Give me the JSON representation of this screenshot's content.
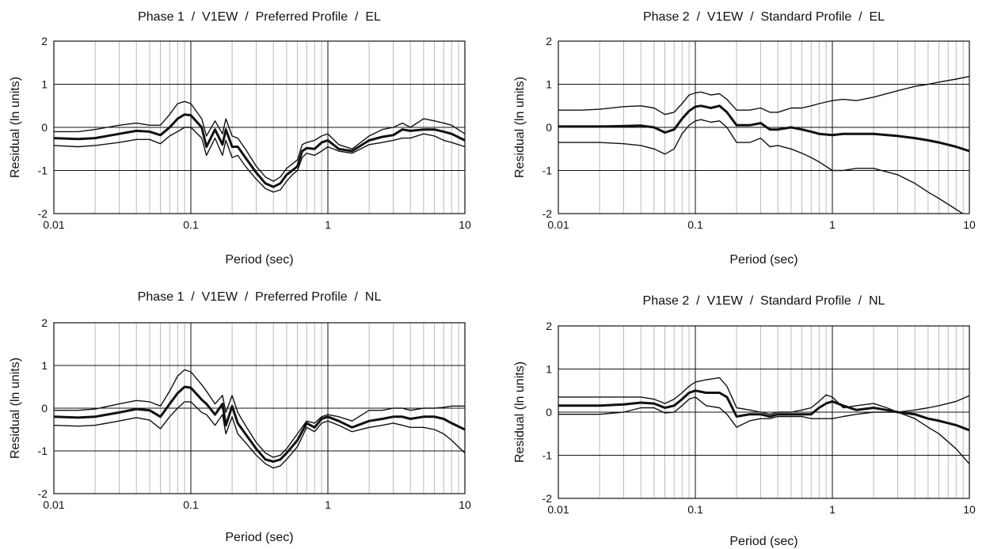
{
  "chart_data": [
    {
      "type": "line",
      "title": "Phase 1  /  V1EW  /  Preferred Profile  /  EL",
      "xlabel": "Period (sec)",
      "ylabel": "Residual (ln units)",
      "xscale": "log",
      "xlim": [
        0.01,
        10
      ],
      "ylim": [
        -2,
        2
      ],
      "xticks": [
        "0.01",
        "0.1",
        "1",
        "10"
      ],
      "yticks": [
        "-2",
        "-1",
        "0",
        "1",
        "2"
      ],
      "grid": true,
      "series": [
        {
          "role": "mean",
          "x": [
            0.01,
            0.015,
            0.02,
            0.03,
            0.04,
            0.05,
            0.06,
            0.07,
            0.08,
            0.09,
            0.1,
            0.12,
            0.13,
            0.15,
            0.17,
            0.18,
            0.2,
            0.22,
            0.25,
            0.3,
            0.35,
            0.4,
            0.45,
            0.5,
            0.55,
            0.6,
            0.65,
            0.7,
            0.8,
            0.9,
            1.0,
            1.2,
            1.5,
            2,
            2.5,
            3,
            3.5,
            4,
            5,
            6,
            7,
            8,
            10
          ],
          "y": [
            -0.25,
            -0.27,
            -0.25,
            -0.15,
            -0.08,
            -0.1,
            -0.18,
            0.0,
            0.2,
            0.3,
            0.28,
            0.0,
            -0.45,
            -0.05,
            -0.4,
            -0.05,
            -0.45,
            -0.45,
            -0.7,
            -1.05,
            -1.3,
            -1.38,
            -1.3,
            -1.1,
            -1.0,
            -0.9,
            -0.55,
            -0.48,
            -0.5,
            -0.35,
            -0.3,
            -0.5,
            -0.55,
            -0.3,
            -0.22,
            -0.18,
            -0.05,
            -0.08,
            -0.05,
            -0.05,
            -0.1,
            -0.15,
            -0.3
          ]
        },
        {
          "role": "upper",
          "x": [
            0.01,
            0.015,
            0.02,
            0.03,
            0.04,
            0.05,
            0.06,
            0.07,
            0.08,
            0.09,
            0.1,
            0.12,
            0.13,
            0.15,
            0.17,
            0.18,
            0.2,
            0.22,
            0.25,
            0.3,
            0.35,
            0.4,
            0.45,
            0.5,
            0.55,
            0.6,
            0.65,
            0.7,
            0.8,
            0.9,
            1.0,
            1.2,
            1.5,
            2,
            2.5,
            3,
            3.5,
            4,
            5,
            6,
            7,
            8,
            10
          ],
          "y": [
            -0.1,
            -0.1,
            -0.05,
            0.05,
            0.1,
            0.05,
            0.05,
            0.3,
            0.55,
            0.6,
            0.55,
            0.2,
            -0.2,
            0.15,
            -0.15,
            0.2,
            -0.2,
            -0.25,
            -0.5,
            -0.9,
            -1.15,
            -1.25,
            -1.15,
            -0.95,
            -0.85,
            -0.75,
            -0.4,
            -0.35,
            -0.3,
            -0.2,
            -0.15,
            -0.4,
            -0.5,
            -0.2,
            -0.05,
            0.0,
            0.1,
            0.0,
            0.2,
            0.15,
            0.1,
            0.05,
            -0.15
          ]
        },
        {
          "role": "lower",
          "x": [
            0.01,
            0.015,
            0.02,
            0.03,
            0.04,
            0.05,
            0.06,
            0.07,
            0.08,
            0.09,
            0.1,
            0.12,
            0.13,
            0.15,
            0.17,
            0.18,
            0.2,
            0.22,
            0.25,
            0.3,
            0.35,
            0.4,
            0.45,
            0.5,
            0.55,
            0.6,
            0.65,
            0.7,
            0.8,
            0.9,
            1.0,
            1.2,
            1.5,
            2,
            2.5,
            3,
            3.5,
            4,
            5,
            6,
            7,
            8,
            10
          ],
          "y": [
            -0.42,
            -0.45,
            -0.42,
            -0.35,
            -0.28,
            -0.28,
            -0.38,
            -0.2,
            -0.1,
            0.0,
            0.0,
            -0.25,
            -0.65,
            -0.25,
            -0.65,
            -0.3,
            -0.7,
            -0.65,
            -0.9,
            -1.2,
            -1.42,
            -1.5,
            -1.45,
            -1.25,
            -1.1,
            -1.0,
            -0.7,
            -0.6,
            -0.65,
            -0.55,
            -0.45,
            -0.55,
            -0.6,
            -0.4,
            -0.35,
            -0.3,
            -0.25,
            -0.25,
            -0.15,
            -0.2,
            -0.3,
            -0.35,
            -0.45
          ]
        }
      ]
    },
    {
      "type": "line",
      "title": "Phase 2  /  V1EW  /  Standard Profile  /  EL",
      "xlabel": "Period (sec)",
      "ylabel": "Residual (ln units)",
      "xscale": "log",
      "xlim": [
        0.01,
        10
      ],
      "ylim": [
        -2,
        2
      ],
      "xticks": [
        "0.01",
        "0.1",
        "1",
        "10"
      ],
      "yticks": [
        "-2",
        "-1",
        "0",
        "1",
        "2"
      ],
      "grid": true,
      "series": [
        {
          "role": "mean",
          "x": [
            0.01,
            0.015,
            0.02,
            0.03,
            0.04,
            0.05,
            0.06,
            0.07,
            0.08,
            0.09,
            0.1,
            0.11,
            0.13,
            0.15,
            0.17,
            0.2,
            0.25,
            0.3,
            0.35,
            0.4,
            0.5,
            0.6,
            0.7,
            0.8,
            1.0,
            1.2,
            1.5,
            2,
            3,
            4,
            5,
            6,
            8,
            10
          ],
          "y": [
            0.02,
            0.02,
            0.02,
            0.03,
            0.04,
            0.0,
            -0.12,
            -0.05,
            0.2,
            0.38,
            0.48,
            0.5,
            0.45,
            0.5,
            0.35,
            0.05,
            0.05,
            0.1,
            -0.05,
            -0.05,
            0.0,
            -0.05,
            -0.1,
            -0.15,
            -0.18,
            -0.15,
            -0.15,
            -0.15,
            -0.2,
            -0.25,
            -0.3,
            -0.35,
            -0.45,
            -0.55
          ]
        },
        {
          "role": "upper",
          "x": [
            0.01,
            0.015,
            0.02,
            0.03,
            0.04,
            0.05,
            0.06,
            0.07,
            0.08,
            0.09,
            0.1,
            0.11,
            0.13,
            0.15,
            0.17,
            0.2,
            0.25,
            0.3,
            0.35,
            0.4,
            0.5,
            0.6,
            0.7,
            0.8,
            1.0,
            1.2,
            1.5,
            2,
            3,
            4,
            5,
            6,
            8,
            10
          ],
          "y": [
            0.4,
            0.4,
            0.42,
            0.48,
            0.5,
            0.45,
            0.3,
            0.35,
            0.55,
            0.75,
            0.8,
            0.82,
            0.75,
            0.78,
            0.65,
            0.4,
            0.4,
            0.45,
            0.35,
            0.35,
            0.45,
            0.45,
            0.5,
            0.55,
            0.62,
            0.65,
            0.62,
            0.7,
            0.85,
            0.95,
            1.0,
            1.05,
            1.12,
            1.18
          ]
        },
        {
          "role": "lower",
          "x": [
            0.01,
            0.015,
            0.02,
            0.03,
            0.04,
            0.05,
            0.06,
            0.07,
            0.08,
            0.09,
            0.1,
            0.11,
            0.13,
            0.15,
            0.17,
            0.2,
            0.25,
            0.3,
            0.35,
            0.4,
            0.5,
            0.6,
            0.7,
            0.8,
            1.0,
            1.2,
            1.5,
            2,
            3,
            4,
            5,
            6,
            8,
            10
          ],
          "y": [
            -0.35,
            -0.35,
            -0.35,
            -0.38,
            -0.42,
            -0.5,
            -0.62,
            -0.5,
            -0.15,
            0.05,
            0.15,
            0.18,
            0.12,
            0.15,
            0.0,
            -0.35,
            -0.35,
            -0.25,
            -0.45,
            -0.42,
            -0.5,
            -0.6,
            -0.7,
            -0.8,
            -1.0,
            -1.0,
            -0.95,
            -0.95,
            -1.1,
            -1.3,
            -1.5,
            -1.65,
            -1.9,
            -2.1
          ]
        }
      ]
    },
    {
      "type": "line",
      "title": "Phase 1  /  V1EW  /  Preferred Profile  /  NL",
      "xlabel": "Period (sec)",
      "ylabel": "Residual (ln units)",
      "xscale": "log",
      "xlim": [
        0.01,
        10
      ],
      "ylim": [
        -2,
        2
      ],
      "xticks": [
        "0.01",
        "0.1",
        "1",
        "10"
      ],
      "yticks": [
        "-2",
        "-1",
        "0",
        "1",
        "2"
      ],
      "grid": true,
      "series": [
        {
          "role": "mean",
          "x": [
            0.01,
            0.015,
            0.02,
            0.03,
            0.04,
            0.05,
            0.06,
            0.07,
            0.08,
            0.09,
            0.1,
            0.12,
            0.13,
            0.15,
            0.17,
            0.18,
            0.2,
            0.22,
            0.25,
            0.3,
            0.35,
            0.4,
            0.45,
            0.5,
            0.6,
            0.7,
            0.8,
            0.9,
            1.0,
            1.2,
            1.5,
            2,
            2.5,
            3,
            3.5,
            4,
            5,
            6,
            7,
            8,
            10
          ],
          "y": [
            -0.2,
            -0.22,
            -0.2,
            -0.1,
            -0.02,
            -0.05,
            -0.2,
            0.1,
            0.35,
            0.5,
            0.48,
            0.2,
            0.1,
            -0.15,
            0.1,
            -0.4,
            0.05,
            -0.35,
            -0.6,
            -0.95,
            -1.2,
            -1.25,
            -1.2,
            -1.05,
            -0.75,
            -0.35,
            -0.45,
            -0.25,
            -0.2,
            -0.3,
            -0.45,
            -0.3,
            -0.25,
            -0.2,
            -0.2,
            -0.25,
            -0.2,
            -0.2,
            -0.25,
            -0.35,
            -0.5
          ]
        },
        {
          "role": "upper",
          "x": [
            0.01,
            0.015,
            0.02,
            0.03,
            0.04,
            0.05,
            0.06,
            0.07,
            0.08,
            0.09,
            0.1,
            0.12,
            0.13,
            0.15,
            0.17,
            0.18,
            0.2,
            0.22,
            0.25,
            0.3,
            0.35,
            0.4,
            0.45,
            0.5,
            0.6,
            0.7,
            0.8,
            0.9,
            1.0,
            1.2,
            1.5,
            2,
            2.5,
            3,
            3.5,
            4,
            5,
            6,
            7,
            8,
            10
          ],
          "y": [
            -0.05,
            -0.05,
            -0.02,
            0.1,
            0.18,
            0.15,
            0.05,
            0.4,
            0.75,
            0.9,
            0.85,
            0.55,
            0.4,
            0.1,
            0.3,
            -0.1,
            0.3,
            -0.1,
            -0.4,
            -0.8,
            -1.05,
            -1.15,
            -1.1,
            -0.95,
            -0.6,
            -0.3,
            -0.35,
            -0.2,
            -0.15,
            -0.2,
            -0.3,
            -0.05,
            -0.05,
            0.0,
            0.0,
            -0.05,
            0.0,
            0.0,
            0.02,
            0.05,
            0.05
          ]
        },
        {
          "role": "lower",
          "x": [
            0.01,
            0.015,
            0.02,
            0.03,
            0.04,
            0.05,
            0.06,
            0.07,
            0.08,
            0.09,
            0.1,
            0.12,
            0.13,
            0.15,
            0.17,
            0.18,
            0.2,
            0.22,
            0.25,
            0.3,
            0.35,
            0.4,
            0.45,
            0.5,
            0.6,
            0.7,
            0.8,
            0.9,
            1.0,
            1.2,
            1.5,
            2,
            2.5,
            3,
            3.5,
            4,
            5,
            6,
            7,
            8,
            10
          ],
          "y": [
            -0.4,
            -0.42,
            -0.4,
            -0.3,
            -0.22,
            -0.28,
            -0.48,
            -0.2,
            0.0,
            0.15,
            0.15,
            -0.1,
            -0.15,
            -0.4,
            -0.15,
            -0.6,
            -0.2,
            -0.6,
            -0.8,
            -1.1,
            -1.3,
            -1.4,
            -1.35,
            -1.2,
            -0.9,
            -0.45,
            -0.55,
            -0.35,
            -0.3,
            -0.4,
            -0.55,
            -0.45,
            -0.4,
            -0.35,
            -0.4,
            -0.45,
            -0.45,
            -0.5,
            -0.6,
            -0.75,
            -1.05
          ]
        }
      ]
    },
    {
      "type": "line",
      "title": "Phase 2  /  V1EW  /  Standard Profile  /  NL",
      "xlabel": "Period (sec)",
      "ylabel": "Residual (ln units)",
      "xscale": "log",
      "xlim": [
        0.01,
        10
      ],
      "ylim": [
        -2,
        2
      ],
      "xticks": [
        "0.01",
        "0.1",
        "1",
        "10"
      ],
      "yticks": [
        "-2",
        "-1",
        "0",
        "1",
        "2"
      ],
      "grid": true,
      "series": [
        {
          "role": "mean",
          "x": [
            0.01,
            0.015,
            0.02,
            0.03,
            0.04,
            0.05,
            0.06,
            0.07,
            0.08,
            0.09,
            0.1,
            0.12,
            0.15,
            0.17,
            0.2,
            0.25,
            0.3,
            0.35,
            0.4,
            0.5,
            0.6,
            0.7,
            0.8,
            0.9,
            1.0,
            1.2,
            1.5,
            2,
            2.5,
            3,
            4,
            5,
            6,
            8,
            10
          ],
          "y": [
            0.15,
            0.15,
            0.15,
            0.18,
            0.22,
            0.2,
            0.1,
            0.15,
            0.3,
            0.45,
            0.5,
            0.45,
            0.45,
            0.35,
            -0.1,
            -0.05,
            -0.05,
            -0.1,
            -0.05,
            -0.05,
            -0.05,
            -0.05,
            0.1,
            0.2,
            0.25,
            0.15,
            0.05,
            0.1,
            0.05,
            0.0,
            -0.05,
            -0.15,
            -0.2,
            -0.3,
            -0.42
          ]
        },
        {
          "role": "upper",
          "x": [
            0.01,
            0.015,
            0.02,
            0.03,
            0.04,
            0.05,
            0.06,
            0.07,
            0.08,
            0.09,
            0.1,
            0.12,
            0.15,
            0.17,
            0.2,
            0.25,
            0.3,
            0.35,
            0.4,
            0.5,
            0.6,
            0.7,
            0.8,
            0.9,
            1.0,
            1.2,
            1.5,
            2,
            2.5,
            3,
            4,
            5,
            6,
            8,
            10
          ],
          "y": [
            0.35,
            0.35,
            0.35,
            0.35,
            0.35,
            0.3,
            0.2,
            0.3,
            0.45,
            0.6,
            0.7,
            0.75,
            0.8,
            0.6,
            0.1,
            0.05,
            0.0,
            -0.05,
            0.0,
            0.0,
            0.05,
            0.1,
            0.25,
            0.4,
            0.35,
            0.1,
            0.15,
            0.2,
            0.1,
            0.0,
            0.05,
            0.1,
            0.15,
            0.25,
            0.38
          ]
        },
        {
          "role": "lower",
          "x": [
            0.01,
            0.015,
            0.02,
            0.03,
            0.04,
            0.05,
            0.06,
            0.07,
            0.08,
            0.09,
            0.1,
            0.12,
            0.15,
            0.17,
            0.2,
            0.25,
            0.3,
            0.35,
            0.4,
            0.5,
            0.6,
            0.7,
            0.8,
            0.9,
            1.0,
            1.2,
            1.5,
            2,
            2.5,
            3,
            4,
            5,
            6,
            8,
            10
          ],
          "y": [
            -0.05,
            -0.05,
            -0.05,
            0.0,
            0.1,
            0.1,
            -0.02,
            0.0,
            0.15,
            0.3,
            0.35,
            0.15,
            0.1,
            -0.05,
            -0.35,
            -0.2,
            -0.15,
            -0.15,
            -0.1,
            -0.1,
            -0.1,
            -0.15,
            -0.15,
            -0.15,
            -0.15,
            -0.1,
            -0.05,
            0.0,
            0.0,
            0.0,
            -0.15,
            -0.35,
            -0.5,
            -0.85,
            -1.2
          ]
        }
      ]
    }
  ]
}
